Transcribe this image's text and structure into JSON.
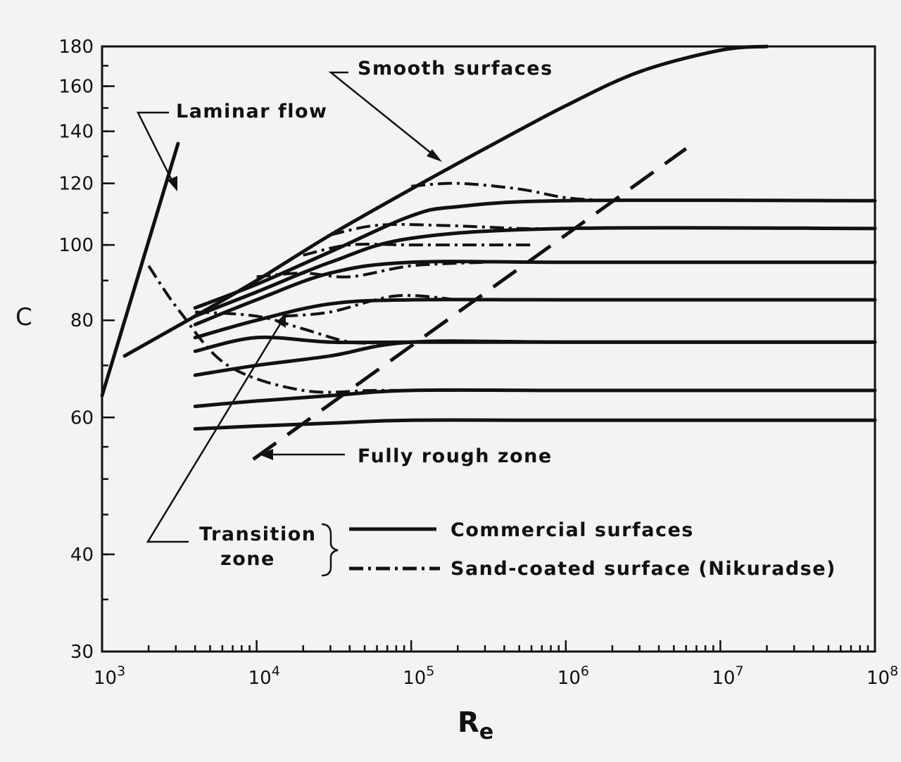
{
  "chart_data": {
    "type": "line",
    "title": "",
    "xlabel": "R",
    "xlabel_subscript": "e",
    "ylabel": "C",
    "x_scale": "log",
    "y_scale": "log",
    "xlim": [
      1000,
      100000000
    ],
    "ylim": [
      30,
      180
    ],
    "x_ticks": [
      {
        "value": 1000,
        "base": "10",
        "exp": "3"
      },
      {
        "value": 10000,
        "base": "10",
        "exp": "4"
      },
      {
        "value": 100000,
        "base": "10",
        "exp": "5"
      },
      {
        "value": 1000000,
        "base": "10",
        "exp": "6"
      },
      {
        "value": 10000000,
        "base": "10",
        "exp": "7"
      },
      {
        "value": 100000000,
        "base": "10",
        "exp": "8"
      }
    ],
    "y_ticks": [
      30,
      40,
      60,
      80,
      100,
      120,
      140,
      160,
      180
    ],
    "grid": false,
    "series": [
      {
        "name": "Laminar flow",
        "style": "solid",
        "x": [
          1000,
          3100
        ],
        "y": [
          64,
          135
        ]
      },
      {
        "name": "Smooth surfaces",
        "style": "solid",
        "x": [
          1400,
          4000,
          10000,
          30000,
          100000,
          300000,
          1000000,
          3000000,
          10000000,
          20000000
        ],
        "y": [
          72,
          81,
          90,
          103,
          118,
          133,
          151,
          167,
          178,
          180
        ]
      },
      {
        "style": "solid",
        "x": [
          4000,
          10000,
          30000,
          100000,
          200000,
          1000000,
          100000000
        ],
        "y": [
          83,
          89,
          98,
          109,
          112,
          114,
          114
        ]
      },
      {
        "style": "solid",
        "x": [
          4000,
          10000,
          30000,
          100000,
          1000000,
          100000000
        ],
        "y": [
          81,
          87,
          95,
          102,
          105,
          105
        ]
      },
      {
        "style": "solid",
        "x": [
          4000,
          10000,
          30000,
          100000,
          1000000,
          100000000
        ],
        "y": [
          79,
          85,
          92,
          95,
          95,
          95
        ]
      },
      {
        "style": "solid",
        "x": [
          4000,
          10000,
          30000,
          100000,
          1000000,
          100000000
        ],
        "y": [
          76,
          80,
          84,
          85,
          85,
          85
        ]
      },
      {
        "style": "solid",
        "x": [
          4000,
          10000,
          30000,
          100000,
          1000000,
          100000000
        ],
        "y": [
          73,
          76,
          75,
          75,
          75,
          75
        ]
      },
      {
        "style": "solid",
        "x": [
          4000,
          10000,
          30000,
          100000,
          1000000,
          100000000
        ],
        "y": [
          68,
          70,
          72,
          75,
          75,
          75
        ]
      },
      {
        "style": "solid",
        "x": [
          4000,
          10000,
          30000,
          100000,
          1000000,
          100000000
        ],
        "y": [
          62,
          63,
          64,
          65,
          65,
          65
        ]
      },
      {
        "style": "solid",
        "x": [
          4000,
          10000,
          30000,
          100000,
          1000000,
          100000000
        ],
        "y": [
          58,
          58.5,
          59,
          59.5,
          59.5,
          59.5
        ]
      },
      {
        "name": "Fully rough zone",
        "style": "dashed",
        "x": [
          9500,
          6000000
        ],
        "y": [
          53,
          133
        ]
      },
      {
        "name": "Sand-coated surface (Nikuradse)",
        "style": "dash-dot",
        "x": [
          2000,
          3200,
          6500,
          20000,
          60000,
          200000
        ],
        "y": [
          94,
          82,
          70,
          65,
          65,
          65
        ]
      },
      {
        "name": "Sand-coated surface (Nikuradse)",
        "style": "dash-dot",
        "x": [
          4000,
          10000,
          20000,
          40000,
          70000
        ],
        "y": [
          82,
          81,
          78,
          75,
          75
        ]
      },
      {
        "name": "Sand-coated surface (Nikuradse)",
        "style": "dash-dot",
        "x": [
          15000,
          30000,
          80000,
          200000
        ],
        "y": [
          81,
          82,
          86,
          85
        ]
      },
      {
        "name": "Sand-coated surface (Nikuradse)",
        "style": "dash-dot",
        "x": [
          10000,
          20000,
          40000,
          100000,
          300000
        ],
        "y": [
          91,
          92,
          91,
          94,
          95
        ]
      },
      {
        "name": "Sand-coated surface (Nikuradse)",
        "style": "dash-dot",
        "x": [
          20000,
          40000,
          100000,
          300000,
          600000
        ],
        "y": [
          97,
          100,
          100,
          100,
          100
        ]
      },
      {
        "name": "Sand-coated surface (Nikuradse)",
        "style": "dash-dot",
        "x": [
          30000,
          60000,
          150000,
          500000,
          1000000
        ],
        "y": [
          103,
          106,
          106,
          105,
          105
        ]
      },
      {
        "name": "Sand-coated surface (Nikuradse)",
        "style": "dash-dot",
        "x": [
          100000,
          200000,
          500000,
          1000000,
          2000000
        ],
        "y": [
          119,
          120,
          118,
          115,
          114
        ]
      }
    ],
    "annotations": [
      {
        "text": "Smooth surfaces"
      },
      {
        "text": "Laminar flow"
      },
      {
        "text": "Fully rough zone"
      },
      {
        "text": "Transition",
        "text2": "zone"
      }
    ],
    "legend": {
      "placement": "bottom-right",
      "entries": [
        {
          "label": "Commercial surfaces",
          "style": "solid"
        },
        {
          "label": "Sand-coated surface (Nikuradse)",
          "style": "dash-dot"
        }
      ]
    }
  }
}
